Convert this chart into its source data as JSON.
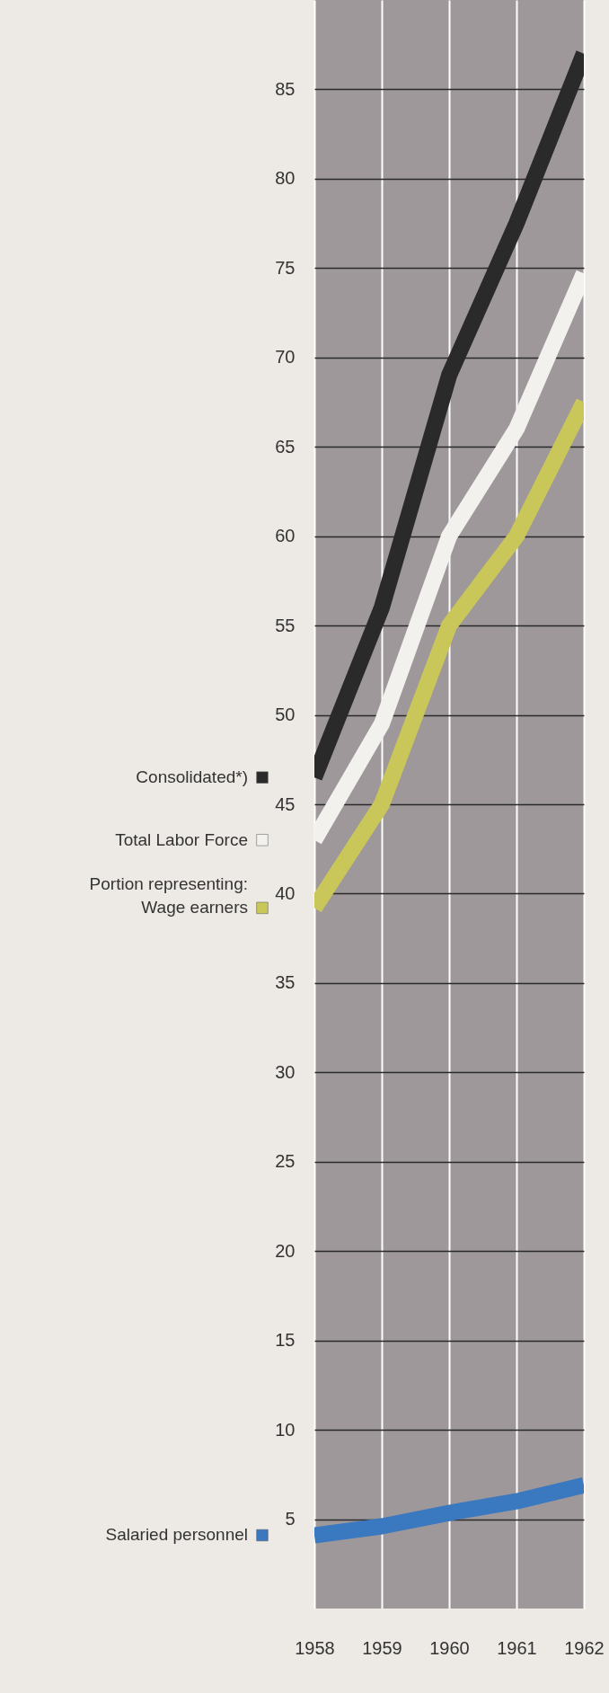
{
  "chart_data": {
    "type": "line",
    "x": [
      1958,
      1959,
      1960,
      1961,
      1962
    ],
    "series": [
      {
        "name": "Consolidated*)",
        "color": "#2b2a2a",
        "values": [
          46.5,
          56,
          69,
          77.5,
          87
        ]
      },
      {
        "name": "Total Labor Force",
        "color": "#f2f1ee",
        "values": [
          43,
          49.5,
          60,
          66,
          74.7
        ]
      },
      {
        "name": "Wage earners",
        "color": "#c9c65a",
        "values": [
          39.2,
          45,
          55,
          60,
          67.5
        ]
      },
      {
        "name": "Salaried personnel",
        "color": "#3a78c0",
        "values": [
          4.1,
          4.6,
          5.35,
          6,
          6.9
        ]
      }
    ],
    "annotations": [
      "Portion representing:"
    ],
    "xlim": [
      1958,
      1962
    ],
    "xticks": [
      1958,
      1959,
      1960,
      1961,
      1962
    ],
    "ylim": [
      0,
      90
    ],
    "yticks": [
      5,
      10,
      15,
      20,
      25,
      30,
      35,
      40,
      45,
      50,
      55,
      60,
      65,
      70,
      75,
      80,
      85
    ],
    "grid": true,
    "legend": "left"
  }
}
